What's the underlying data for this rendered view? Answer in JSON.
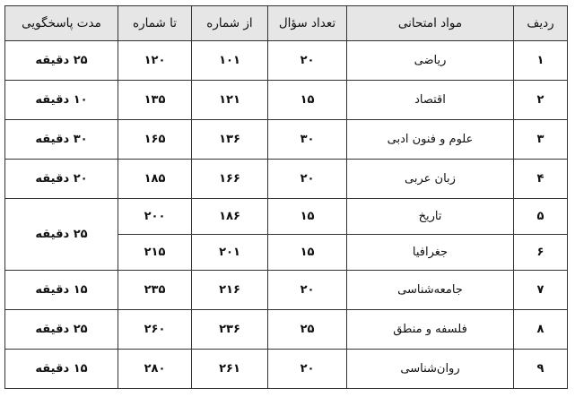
{
  "headers": [
    "ردیف",
    "مواد امتحانی",
    "تعداد سؤال",
    "از شماره",
    "تا شماره",
    "مدت پاسخگویی"
  ],
  "rows": [
    {
      "n": "۱",
      "subject": "ریاضی",
      "count": "۲۰",
      "from": "۱۰۱",
      "to": "۱۲۰",
      "duration": "۲۵ دقیقه"
    },
    {
      "n": "۲",
      "subject": "اقتصاد",
      "count": "۱۵",
      "from": "۱۲۱",
      "to": "۱۳۵",
      "duration": "۱۰ دقیقه"
    },
    {
      "n": "۳",
      "subject": "علوم و فنون ادبی",
      "count": "۳۰",
      "from": "۱۳۶",
      "to": "۱۶۵",
      "duration": "۳۰ دقیقه"
    },
    {
      "n": "۴",
      "subject": "زبان عربی",
      "count": "۲۰",
      "from": "۱۶۶",
      "to": "۱۸۵",
      "duration": "۲۰ دقیقه"
    },
    {
      "n": "۵",
      "subject": "تاریخ",
      "count": "۱۵",
      "from": "۱۸۶",
      "to": "۲۰۰",
      "duration": "۲۵ دقیقه"
    },
    {
      "n": "۶",
      "subject": "جغرافیا",
      "count": "۱۵",
      "from": "۲۰۱",
      "to": "۲۱۵"
    },
    {
      "n": "۷",
      "subject": "جامعه‌شناسی",
      "count": "۲۰",
      "from": "۲۱۶",
      "to": "۲۳۵",
      "duration": "۱۵ دقیقه"
    },
    {
      "n": "۸",
      "subject": "فلسفه و منطق",
      "count": "۲۵",
      "from": "۲۳۶",
      "to": "۲۶۰",
      "duration": "۲۵ دقیقه"
    },
    {
      "n": "۹",
      "subject": "روان‌شناسی",
      "count": "۲۰",
      "from": "۲۶۱",
      "to": "۲۸۰",
      "duration": "۱۵ دقیقه"
    }
  ]
}
